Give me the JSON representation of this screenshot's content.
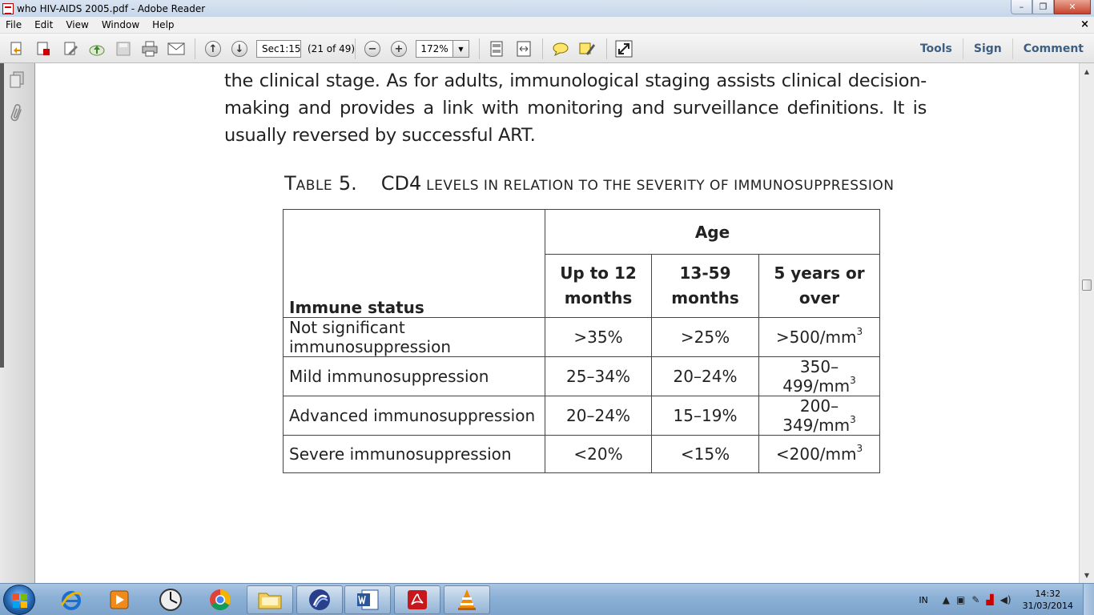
{
  "window": {
    "title": "who HIV-AIDS 2005.pdf - Adobe Reader",
    "controls": {
      "minimize": "–",
      "maximize": "❐",
      "close": "✕"
    }
  },
  "menu": {
    "items": [
      "File",
      "Edit",
      "View",
      "Window",
      "Help"
    ],
    "doc_close": "×"
  },
  "toolbar": {
    "page_field": "Sec1:15",
    "page_count": "(21 of 49)",
    "zoom_value": "172%",
    "right_buttons": [
      "Tools",
      "Sign",
      "Comment"
    ]
  },
  "document": {
    "paragraph_lines": [
      "the clinical stage. As for adults, immunological staging assists clinical decision-",
      "making and provides a link with monitoring and surveillance definitions. It is",
      "usually reversed by successful ART."
    ],
    "caption_lead": "T",
    "caption_table": "able",
    "caption_number": " 5.",
    "caption_cd4": "CD4",
    "caption_rest": " levels in relation to the severity of immunosuppression",
    "table": {
      "group_header": "Age",
      "row_header_label": "Immune status",
      "sub_headers": [
        [
          "Up to 12",
          "months"
        ],
        [
          "13-59",
          "months"
        ],
        [
          "5 years or",
          "over"
        ]
      ],
      "superscript": "3",
      "rows": [
        {
          "status": "Not significant immunosuppression",
          "c1": ">35%",
          "c2": ">25%",
          "c3": ">500/mm"
        },
        {
          "status": "Mild immunosuppression",
          "c1": "25–34%",
          "c2": "20–24%",
          "c3": "350–499/mm"
        },
        {
          "status": "Advanced immunosuppression",
          "c1": "20–24%",
          "c2": "15–19%",
          "c3": "200–349/mm"
        },
        {
          "status": "Severe immunosuppression",
          "c1": "<20%",
          "c2": "<15%",
          "c3": "<200/mm"
        }
      ]
    }
  },
  "taskbar": {
    "language": "IN",
    "time": "14:32",
    "date": "31/03/2014",
    "apps": [
      "start",
      "internet-explorer",
      "media-player",
      "clock-app",
      "chrome",
      "file-explorer",
      "app-swirl",
      "word",
      "adobe-reader",
      "vlc"
    ]
  },
  "colors": {
    "toolbar_link": "#3c5f82",
    "doc_background": "#595959",
    "title_bar": "#c6d6ea",
    "taskbar": "#8bb0d6"
  }
}
